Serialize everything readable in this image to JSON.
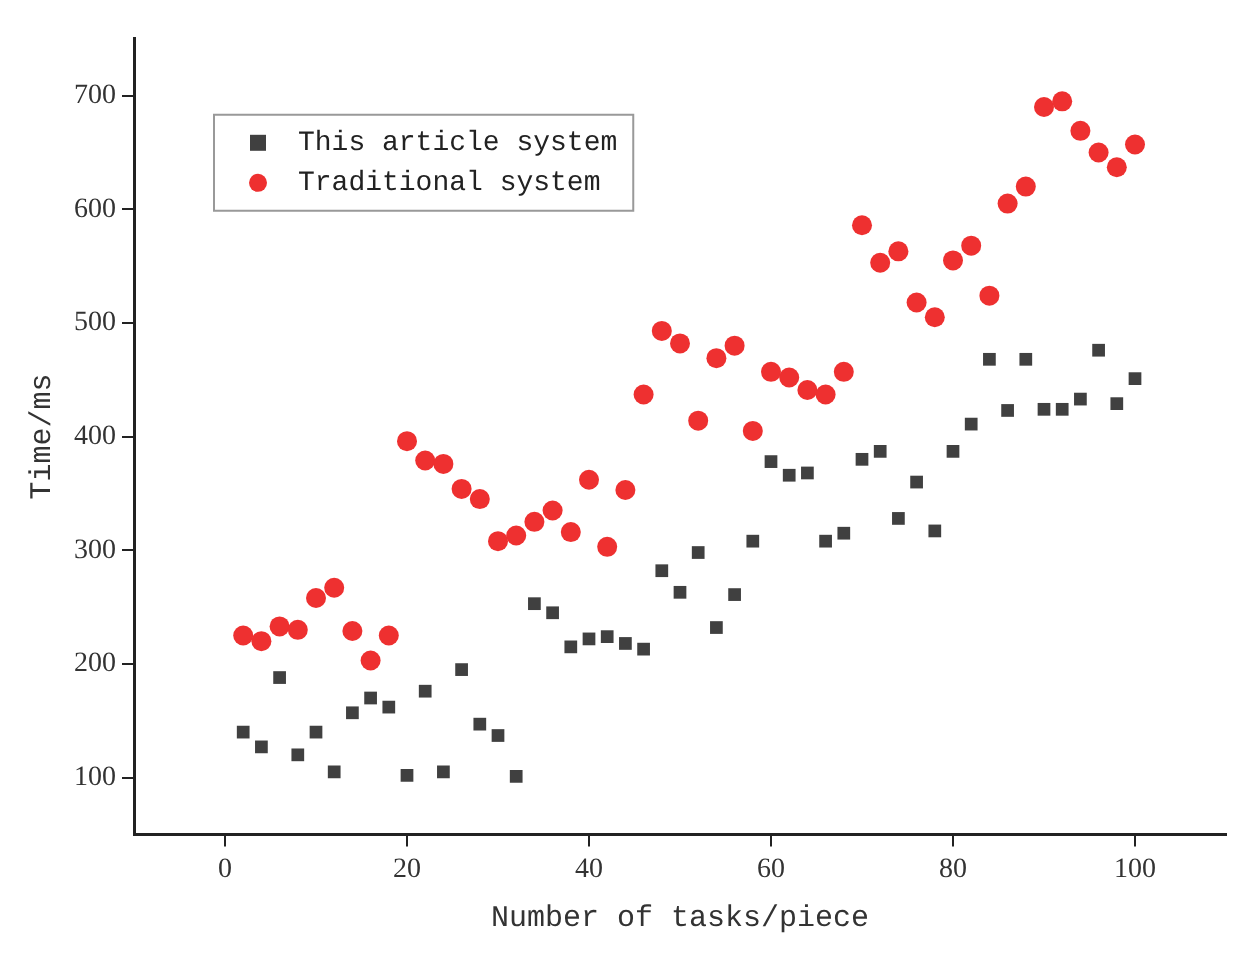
{
  "chart_data": {
    "type": "scatter",
    "xlabel": "Number of tasks/piece",
    "ylabel": "Time/ms",
    "xlim": [
      -10,
      110
    ],
    "xticks": [
      0,
      20,
      40,
      60,
      80,
      100
    ],
    "ylim": [
      50,
      750
    ],
    "yticks": [
      100,
      200,
      300,
      400,
      500,
      600,
      700
    ],
    "x": [
      2,
      4,
      6,
      8,
      10,
      12,
      14,
      16,
      18,
      20,
      22,
      24,
      26,
      28,
      30,
      32,
      34,
      36,
      38,
      40,
      42,
      44,
      46,
      48,
      50,
      52,
      54,
      56,
      58,
      60,
      62,
      64,
      66,
      68,
      70,
      72,
      74,
      76,
      78,
      80,
      82,
      84,
      86,
      88,
      90,
      92,
      94,
      96,
      98,
      100
    ],
    "grid": false,
    "legend": "top left",
    "series": [
      {
        "name": "This article system",
        "color": "#404040",
        "marker": "square",
        "values": [
          140,
          127,
          188,
          120,
          140,
          105,
          157,
          170,
          162,
          102,
          176,
          105,
          195,
          147,
          137,
          101,
          253,
          245,
          215,
          222,
          224,
          218,
          213,
          282,
          263,
          298,
          232,
          261,
          308,
          378,
          366,
          368,
          308,
          315,
          380,
          387,
          328,
          360,
          317,
          387,
          411,
          468,
          423,
          468,
          424,
          424,
          433,
          476,
          429,
          451
        ]
      },
      {
        "name": "Traditional system",
        "color": "#ee3030",
        "marker": "circle",
        "values": [
          225,
          220,
          233,
          230,
          258,
          267,
          229,
          203,
          225,
          396,
          379,
          376,
          354,
          345,
          308,
          313,
          325,
          335,
          316,
          362,
          303,
          353,
          437,
          493,
          482,
          414,
          469,
          480,
          405,
          457,
          452,
          441,
          437,
          457,
          586,
          553,
          563,
          518,
          505,
          555,
          568,
          524,
          605,
          620,
          690,
          695,
          669,
          650,
          637,
          657
        ]
      }
    ]
  }
}
